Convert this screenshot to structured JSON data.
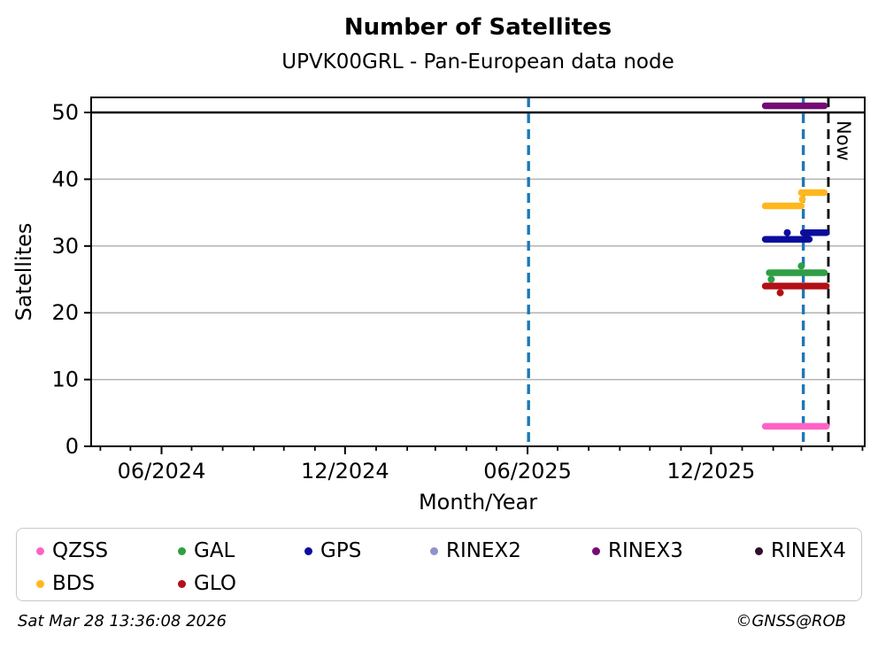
{
  "page": {
    "title": "Number of Satellites",
    "subtitle": "UPVK00GRL - Pan-European data node"
  },
  "axes": {
    "xlabel": "Month/Year",
    "ylabel": "Satellites",
    "y_ticks": [
      0,
      10,
      20,
      30,
      40,
      50
    ],
    "y_min": 0,
    "y_max": 52.3,
    "hline_y": 50,
    "x_start": "2024-03-23",
    "x_end": "2026-05-03",
    "x_ticks": [
      {
        "date": "2024-06-01",
        "label": "06/2024"
      },
      {
        "date": "2024-12-01",
        "label": "12/2024"
      },
      {
        "date": "2025-06-01",
        "label": "06/2025"
      },
      {
        "date": "2025-12-01",
        "label": "12/2025"
      }
    ],
    "x_minor_tick_interval": "1 month"
  },
  "annotations": {
    "now": {
      "label": "Now",
      "date": "2026-03-28",
      "color": "#000000",
      "style": "dashed"
    },
    "event_lines": [
      {
        "date": "2025-06-02",
        "color": "#1f77b4",
        "style": "dashed"
      },
      {
        "date": "2026-03-03",
        "color": "#1f77b4",
        "style": "dashed"
      }
    ]
  },
  "legend": {
    "items": [
      {
        "label": "QZSS",
        "color": "#ff63c5"
      },
      {
        "label": "GAL",
        "color": "#2f9e44"
      },
      {
        "label": "GPS",
        "color": "#0c0c9c"
      },
      {
        "label": "RINEX2",
        "color": "#9191cd"
      },
      {
        "label": "RINEX3",
        "color": "#740b74"
      },
      {
        "label": "RINEX4",
        "color": "#2d0f2d"
      },
      {
        "label": "BDS",
        "color": "#ffb71d"
      },
      {
        "label": "GLO",
        "color": "#b21016"
      }
    ]
  },
  "footer": {
    "generated": "Sat Mar 28 13:36:08 2026",
    "credit": "©GNSS@ROB"
  },
  "chart_data": {
    "type": "line",
    "title": "Number of Satellites",
    "subtitle": "UPVK00GRL - Pan-European data node",
    "xlabel": "Month/Year",
    "ylabel": "Satellites",
    "x_range": [
      "2024-03-23",
      "2026-05-03"
    ],
    "ylim": [
      0,
      52.3
    ],
    "grid": "horizontal",
    "legend_position": "bottom",
    "series": [
      {
        "name": "QZSS",
        "color": "#ff63c5",
        "segments": [
          {
            "start": "2026-01-24",
            "end": "2026-03-26",
            "value": 3
          }
        ],
        "points": []
      },
      {
        "name": "GAL",
        "color": "#2f9e44",
        "segments": [
          {
            "start": "2026-01-28",
            "end": "2026-03-24",
            "value": 26
          }
        ],
        "points": [
          {
            "date": "2026-01-30",
            "value": 25
          },
          {
            "date": "2026-03-01",
            "value": 27
          }
        ]
      },
      {
        "name": "GPS",
        "color": "#0c0c9c",
        "segments": [
          {
            "start": "2026-01-24",
            "end": "2026-03-09",
            "value": 31
          },
          {
            "start": "2026-03-03",
            "end": "2026-03-26",
            "value": 32
          }
        ],
        "points": [
          {
            "date": "2026-02-15",
            "value": 32
          }
        ]
      },
      {
        "name": "RINEX2",
        "color": "#9191cd",
        "segments": [],
        "points": []
      },
      {
        "name": "RINEX3",
        "color": "#740b74",
        "segments": [
          {
            "start": "2026-01-24",
            "end": "2026-03-24",
            "value": 51
          }
        ],
        "points": []
      },
      {
        "name": "RINEX4",
        "color": "#2d0f2d",
        "segments": [],
        "points": []
      },
      {
        "name": "BDS",
        "color": "#ffb71d",
        "segments": [
          {
            "start": "2026-01-24",
            "end": "2026-03-01",
            "value": 36
          },
          {
            "start": "2026-03-01",
            "end": "2026-03-24",
            "value": 38
          }
        ],
        "points": [
          {
            "date": "2026-03-02",
            "value": 37
          }
        ]
      },
      {
        "name": "GLO",
        "color": "#b21016",
        "segments": [
          {
            "start": "2026-01-24",
            "end": "2026-03-26",
            "value": 24
          }
        ],
        "points": [
          {
            "date": "2026-02-08",
            "value": 23
          }
        ]
      }
    ]
  }
}
